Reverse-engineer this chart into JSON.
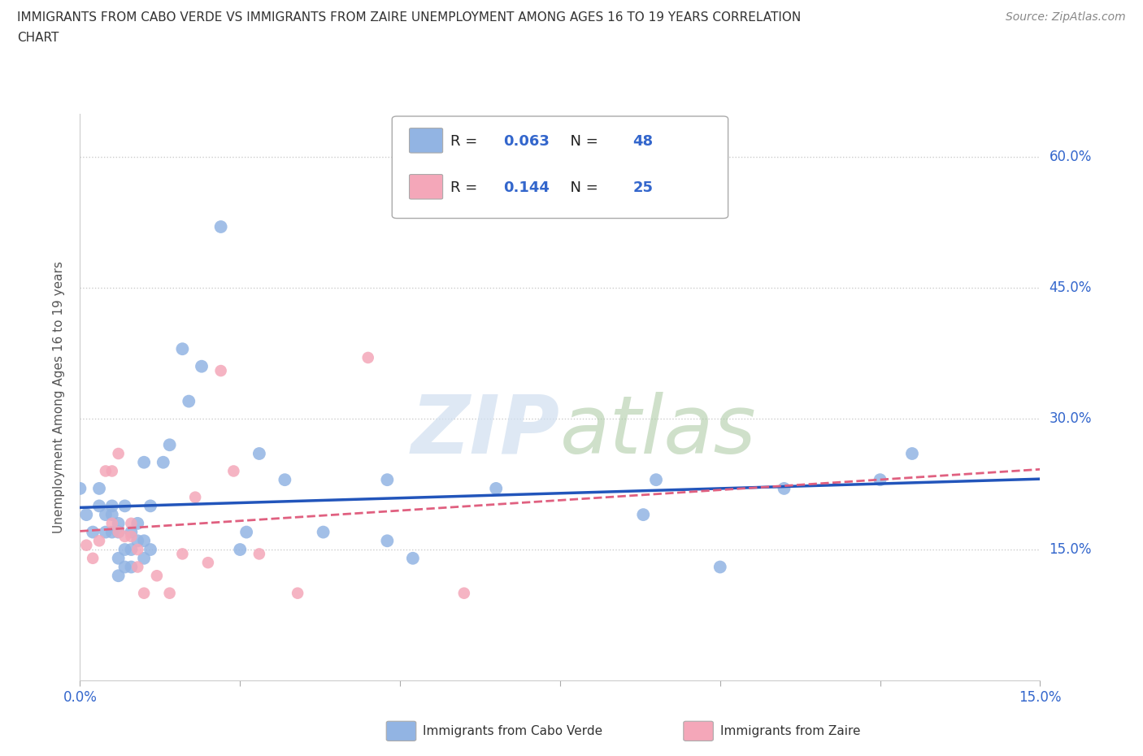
{
  "title_line1": "IMMIGRANTS FROM CABO VERDE VS IMMIGRANTS FROM ZAIRE UNEMPLOYMENT AMONG AGES 16 TO 19 YEARS CORRELATION",
  "title_line2": "CHART",
  "source_text": "Source: ZipAtlas.com",
  "ylabel": "Unemployment Among Ages 16 to 19 years",
  "xmin": 0.0,
  "xmax": 0.15,
  "ymin": 0.0,
  "ymax": 0.65,
  "ytick_right_labels": [
    "60.0%",
    "45.0%",
    "30.0%",
    "15.0%"
  ],
  "ytick_right_values": [
    0.6,
    0.45,
    0.3,
    0.15
  ],
  "cabo_verde_R": "0.063",
  "cabo_verde_N": "48",
  "zaire_R": "0.144",
  "zaire_N": "25",
  "cabo_verde_color": "#92b4e3",
  "zaire_color": "#f4a7b9",
  "trend_cabo_color": "#2255bb",
  "trend_zaire_color": "#e06080",
  "watermark_color": "#d0dff0",
  "cabo_verde_x": [
    0.0,
    0.001,
    0.002,
    0.003,
    0.003,
    0.004,
    0.004,
    0.005,
    0.005,
    0.005,
    0.006,
    0.006,
    0.006,
    0.006,
    0.007,
    0.007,
    0.007,
    0.008,
    0.008,
    0.008,
    0.009,
    0.009,
    0.01,
    0.01,
    0.01,
    0.011,
    0.011,
    0.013,
    0.014,
    0.016,
    0.017,
    0.019,
    0.022,
    0.025,
    0.026,
    0.028,
    0.032,
    0.038,
    0.048,
    0.048,
    0.052,
    0.065,
    0.088,
    0.09,
    0.1,
    0.11,
    0.125,
    0.13
  ],
  "cabo_verde_y": [
    0.22,
    0.19,
    0.17,
    0.2,
    0.22,
    0.17,
    0.19,
    0.17,
    0.19,
    0.2,
    0.12,
    0.14,
    0.17,
    0.18,
    0.13,
    0.15,
    0.2,
    0.13,
    0.15,
    0.17,
    0.16,
    0.18,
    0.14,
    0.16,
    0.25,
    0.15,
    0.2,
    0.25,
    0.27,
    0.38,
    0.32,
    0.36,
    0.52,
    0.15,
    0.17,
    0.26,
    0.23,
    0.17,
    0.16,
    0.23,
    0.14,
    0.22,
    0.19,
    0.23,
    0.13,
    0.22,
    0.23,
    0.26
  ],
  "zaire_x": [
    0.001,
    0.002,
    0.003,
    0.004,
    0.005,
    0.005,
    0.006,
    0.006,
    0.007,
    0.008,
    0.008,
    0.009,
    0.009,
    0.01,
    0.012,
    0.014,
    0.016,
    0.018,
    0.02,
    0.022,
    0.024,
    0.028,
    0.034,
    0.045,
    0.06
  ],
  "zaire_y": [
    0.155,
    0.14,
    0.16,
    0.24,
    0.18,
    0.24,
    0.17,
    0.26,
    0.165,
    0.165,
    0.18,
    0.13,
    0.15,
    0.1,
    0.12,
    0.1,
    0.145,
    0.21,
    0.135,
    0.355,
    0.24,
    0.145,
    0.1,
    0.37,
    0.1
  ]
}
